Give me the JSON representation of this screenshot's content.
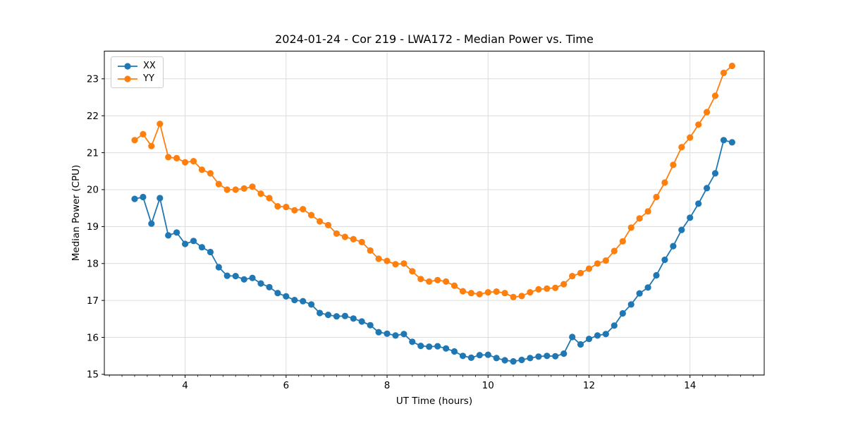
{
  "chart_data": {
    "type": "line",
    "title": "2024-01-24 - Cor 219 - LWA172 - Median Power vs. Time",
    "xlabel": "UT Time (hours)",
    "ylabel": "Median Power (CPU)",
    "xlim": [
      2.4,
      15.47
    ],
    "ylim": [
      14.98,
      23.75
    ],
    "xticks": [
      4,
      6,
      8,
      10,
      12,
      14
    ],
    "xminor_step": 0.25,
    "yticks": [
      15,
      16,
      17,
      18,
      19,
      20,
      21,
      22,
      23
    ],
    "grid": true,
    "grid_color": "#dcdcdc",
    "spine_color": "#000000",
    "legend_position": "upper left",
    "marker": "circle",
    "x": [
      3.0,
      3.167,
      3.333,
      3.5,
      3.667,
      3.833,
      4.0,
      4.167,
      4.333,
      4.5,
      4.667,
      4.833,
      5.0,
      5.167,
      5.333,
      5.5,
      5.667,
      5.833,
      6.0,
      6.167,
      6.333,
      6.5,
      6.667,
      6.833,
      7.0,
      7.167,
      7.333,
      7.5,
      7.667,
      7.833,
      8.0,
      8.167,
      8.333,
      8.5,
      8.667,
      8.833,
      9.0,
      9.167,
      9.333,
      9.5,
      9.667,
      9.833,
      10.0,
      10.167,
      10.333,
      10.5,
      10.667,
      10.833,
      11.0,
      11.167,
      11.333,
      11.5,
      11.667,
      11.833,
      12.0,
      12.167,
      12.333,
      12.5,
      12.667,
      12.833,
      13.0,
      13.167,
      13.333,
      13.5,
      13.667,
      13.833,
      14.0,
      14.167,
      14.333,
      14.5,
      14.667,
      14.833
    ],
    "series": [
      {
        "name": "XX",
        "color": "#1f77b4",
        "values": [
          19.75,
          19.8,
          19.08,
          19.77,
          18.76,
          18.84,
          18.53,
          18.61,
          18.44,
          18.31,
          17.9,
          17.67,
          17.66,
          17.57,
          17.61,
          17.46,
          17.36,
          17.2,
          17.11,
          17.01,
          16.98,
          16.89,
          16.66,
          16.61,
          16.57,
          16.58,
          16.51,
          16.43,
          16.33,
          16.14,
          16.1,
          16.05,
          16.09,
          15.88,
          15.77,
          15.75,
          15.76,
          15.7,
          15.62,
          15.5,
          15.45,
          15.52,
          15.53,
          15.44,
          15.38,
          15.35,
          15.39,
          15.44,
          15.48,
          15.5,
          15.49,
          15.56,
          16.01,
          15.81,
          15.96,
          16.05,
          16.09,
          16.32,
          16.65,
          16.89,
          17.19,
          17.35,
          17.68,
          18.1,
          18.47,
          18.91,
          19.24,
          19.62,
          20.04,
          20.44,
          21.34,
          21.28
        ]
      },
      {
        "name": "YY",
        "color": "#ff7f0e",
        "values": [
          21.34,
          21.5,
          21.18,
          21.78,
          20.88,
          20.85,
          20.74,
          20.77,
          20.54,
          20.44,
          20.15,
          20.0,
          20.0,
          20.03,
          20.08,
          19.89,
          19.77,
          19.55,
          19.53,
          19.44,
          19.47,
          19.31,
          19.14,
          19.04,
          18.81,
          18.72,
          18.66,
          18.58,
          18.35,
          18.13,
          18.07,
          17.98,
          18.0,
          17.79,
          17.58,
          17.51,
          17.55,
          17.51,
          17.4,
          17.25,
          17.2,
          17.17,
          17.22,
          17.24,
          17.2,
          17.09,
          17.12,
          17.22,
          17.3,
          17.32,
          17.34,
          17.44,
          17.66,
          17.74,
          17.86,
          18.0,
          18.08,
          18.34,
          18.6,
          18.97,
          19.22,
          19.41,
          19.8,
          20.19,
          20.67,
          21.15,
          21.41,
          21.76,
          22.1,
          22.54,
          23.16,
          23.35
        ]
      }
    ]
  }
}
